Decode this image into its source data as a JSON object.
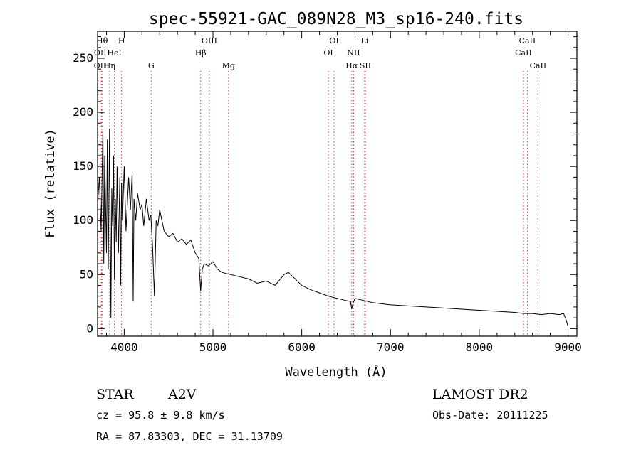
{
  "chart_data": {
    "type": "line",
    "title": "spec-55921-GAC_089N28_M3_sp16-240.fits",
    "xlabel": "Wavelength (Å)",
    "ylabel": "Flux (relative)",
    "xlim": [
      3700,
      9100
    ],
    "ylim": [
      -7,
      275
    ],
    "xticks": [
      4000,
      5000,
      6000,
      7000,
      8000,
      9000
    ],
    "yticks": [
      0,
      50,
      100,
      150,
      200,
      250
    ],
    "grid": false,
    "series": [
      {
        "x": [
          3700,
          3720,
          3740,
          3760,
          3770,
          3780,
          3800,
          3810,
          3820,
          3835,
          3850,
          3860,
          3870,
          3880,
          3890,
          3900,
          3910,
          3920,
          3935,
          3950,
          3960,
          3970,
          3980,
          4000,
          4020,
          4050,
          4070,
          4090,
          4101,
          4110,
          4130,
          4150,
          4180,
          4200,
          4220,
          4250,
          4280,
          4300,
          4320,
          4340,
          4360,
          4380,
          4400,
          4450,
          4500,
          4550,
          4600,
          4650,
          4700,
          4750,
          4800,
          4840,
          4861,
          4880,
          4900,
          4950,
          5000,
          5050,
          5100,
          5200,
          5300,
          5400,
          5500,
          5600,
          5700,
          5750,
          5800,
          5850,
          5900,
          5950,
          6000,
          6100,
          6200,
          6300,
          6400,
          6500,
          6550,
          6563,
          6580,
          6600,
          6700,
          6800,
          6900,
          7000,
          7200,
          7400,
          7600,
          7800,
          8000,
          8200,
          8400,
          8500,
          8600,
          8700,
          8800,
          8900,
          8950,
          8980,
          9000
        ],
        "y": [
          115,
          140,
          90,
          185,
          60,
          160,
          70,
          175,
          55,
          185,
          10,
          130,
          95,
          160,
          45,
          120,
          80,
          150,
          70,
          140,
          40,
          135,
          100,
          150,
          90,
          140,
          110,
          145,
          25,
          120,
          100,
          125,
          110,
          115,
          95,
          120,
          100,
          105,
          75,
          30,
          100,
          95,
          110,
          90,
          85,
          88,
          80,
          83,
          78,
          82,
          70,
          65,
          35,
          55,
          60,
          58,
          62,
          55,
          52,
          50,
          48,
          46,
          42,
          44,
          40,
          45,
          50,
          52,
          48,
          44,
          40,
          36,
          33,
          30,
          28,
          26,
          25,
          18,
          24,
          28,
          26,
          24,
          23,
          22,
          21,
          20,
          19,
          18,
          17,
          16,
          15,
          14,
          14,
          13,
          14,
          13,
          14,
          8,
          2
        ]
      }
    ],
    "line_markers": [
      {
        "x": 3750,
        "row": 1,
        "label": "Hθ"
      },
      {
        "x": 3730,
        "row": 2,
        "label": "OII"
      },
      {
        "x": 3745,
        "row": 3,
        "label": "OIII"
      },
      {
        "x": 3835,
        "row": 3,
        "label": "Hη"
      },
      {
        "x": 3970,
        "row": 1,
        "label": "H"
      },
      {
        "x": 3889,
        "row": 2,
        "label": "HeI"
      },
      {
        "x": 4304,
        "row": 3,
        "label": "G"
      },
      {
        "x": 4959,
        "row": 1,
        "label": "OIII"
      },
      {
        "x": 4861,
        "row": 2,
        "label": "Hβ"
      },
      {
        "x": 5175,
        "row": 3,
        "label": "Mg"
      },
      {
        "x": 6364,
        "row": 1,
        "label": "OI"
      },
      {
        "x": 6300,
        "row": 2,
        "label": "OI"
      },
      {
        "x": 6708,
        "row": 1,
        "label": "Li"
      },
      {
        "x": 6584,
        "row": 2,
        "label": "NII"
      },
      {
        "x": 6563,
        "row": 3,
        "label": "Hα"
      },
      {
        "x": 6717,
        "row": 3,
        "label": "SII"
      },
      {
        "x": 8542,
        "row": 1,
        "label": "CaII"
      },
      {
        "x": 8498,
        "row": 2,
        "label": "CaII"
      },
      {
        "x": 8662,
        "row": 3,
        "label": "CaII"
      }
    ]
  },
  "info": {
    "class_label": "STAR",
    "subclass": "A2V",
    "survey": "LAMOST DR2",
    "cz": "cz = 95.8 ± 9.8 km/s",
    "obs_date": "Obs-Date: 20111225",
    "radec": "RA =  87.83303, DEC =  31.13709"
  }
}
